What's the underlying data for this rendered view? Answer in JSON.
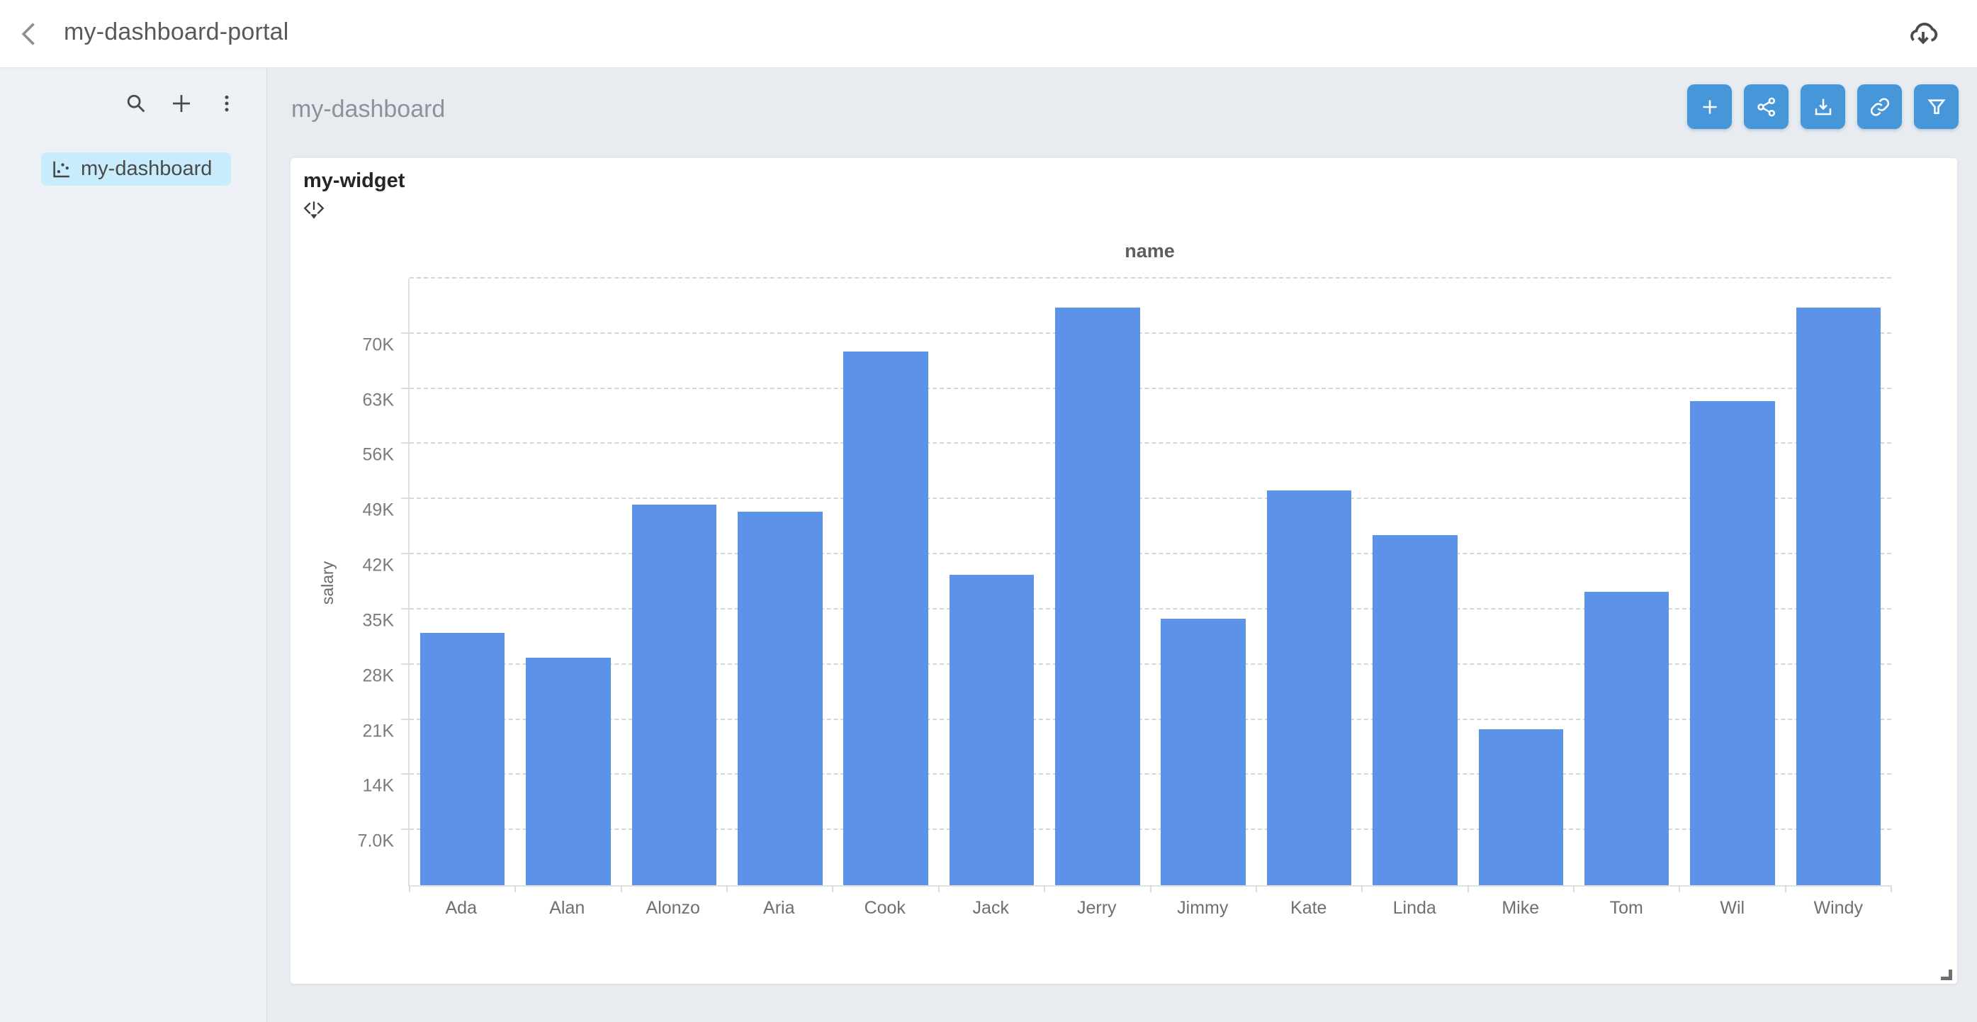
{
  "topbar": {
    "title": "my-dashboard-portal"
  },
  "sidebar": {
    "items": [
      {
        "label": "my-dashboard",
        "icon": "scatter-chart-icon",
        "active": true
      }
    ]
  },
  "main": {
    "title": "my-dashboard",
    "toolbar": [
      {
        "name": "add-widget",
        "icon": "plus-icon"
      },
      {
        "name": "share",
        "icon": "share-icon"
      },
      {
        "name": "export",
        "icon": "download-icon"
      },
      {
        "name": "link",
        "icon": "link-icon"
      },
      {
        "name": "filter",
        "icon": "filter-icon"
      }
    ]
  },
  "widget": {
    "title": "my-widget"
  },
  "chart_data": {
    "type": "bar",
    "title": "name",
    "xlabel": "name",
    "ylabel": "salary",
    "categories": [
      "Ada",
      "Alan",
      "Alonzo",
      "Aria",
      "Cook",
      "Jack",
      "Jerry",
      "Jimmy",
      "Kate",
      "Linda",
      "Mike",
      "Tom",
      "Wil",
      "Windy"
    ],
    "values": [
      32000,
      28900,
      48300,
      47400,
      67700,
      39400,
      73300,
      33800,
      50100,
      44400,
      19800,
      37200,
      61400,
      73300
    ],
    "yticks": [
      {
        "label": "7.0K",
        "value": 7000
      },
      {
        "label": "14K",
        "value": 14000
      },
      {
        "label": "21K",
        "value": 21000
      },
      {
        "label": "28K",
        "value": 28000
      },
      {
        "label": "35K",
        "value": 35000
      },
      {
        "label": "42K",
        "value": 42000
      },
      {
        "label": "49K",
        "value": 49000
      },
      {
        "label": "56K",
        "value": 56000
      },
      {
        "label": "63K",
        "value": 63000
      },
      {
        "label": "70K",
        "value": 70000
      }
    ],
    "ylim": [
      0,
      77000
    ],
    "grid": "horizontal-dashed",
    "legend": "none",
    "bar_color": "#5C93E8"
  },
  "colors": {
    "accent": "#4697DA",
    "bar": "#5C93E8",
    "sidebar_active_bg": "#C9ECFC",
    "sidebar_bg": "#EDF0F4",
    "main_bg": "#E8ECF1"
  }
}
